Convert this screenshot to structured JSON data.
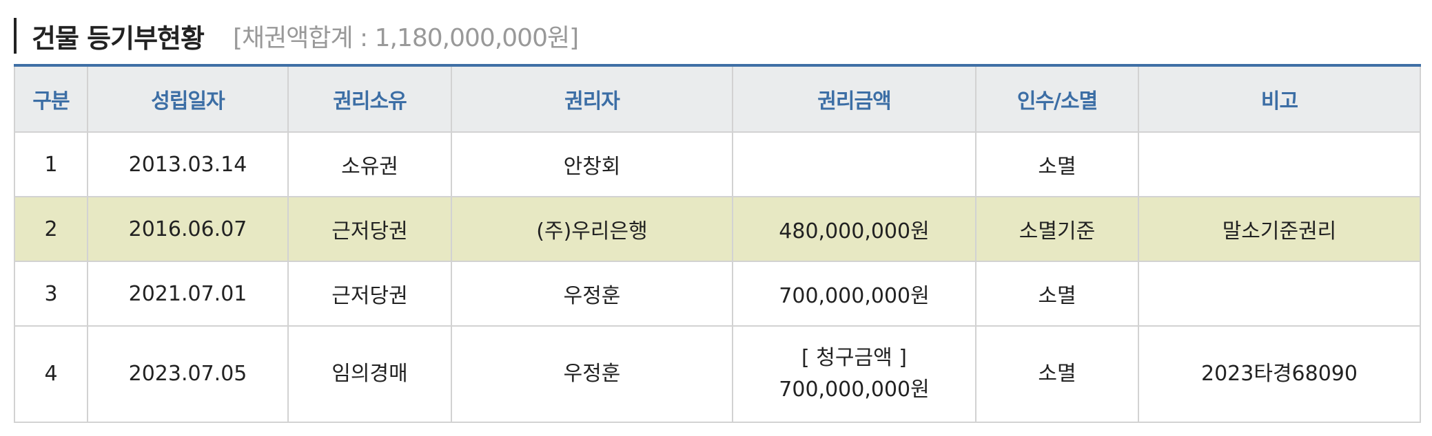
{
  "header": {
    "title": "건물 등기부현황",
    "summary": "[채권액합계 : 1,180,000,000원]"
  },
  "table": {
    "columns": [
      "구분",
      "성립일자",
      "권리소유",
      "권리자",
      "권리금액",
      "인수/소멸",
      "비고"
    ],
    "rows": [
      {
        "no": "1",
        "date": "2013.03.14",
        "right_type": "소유권",
        "holder": "안창회",
        "amount_label": "",
        "amount": "",
        "status": "소멸",
        "note": "",
        "highlight": false
      },
      {
        "no": "2",
        "date": "2016.06.07",
        "right_type": "근저당권",
        "holder": "(주)우리은행",
        "amount_label": "",
        "amount": "480,000,000원",
        "status": "소멸기준",
        "note": "말소기준권리",
        "highlight": true
      },
      {
        "no": "3",
        "date": "2021.07.01",
        "right_type": "근저당권",
        "holder": "우정훈",
        "amount_label": "",
        "amount": "700,000,000원",
        "status": "소멸",
        "note": "",
        "highlight": false
      },
      {
        "no": "4",
        "date": "2023.07.05",
        "right_type": "임의경매",
        "holder": "우정훈",
        "amount_label": "[ 청구금액 ]",
        "amount": "700,000,000원",
        "status": "소멸",
        "note": "2023타경68090",
        "highlight": false
      }
    ]
  },
  "colors": {
    "accent": "#3c6ea5",
    "header_bg": "#eaeced",
    "highlight_row_bg": "#e7e8c3",
    "alert_text": "#e02525",
    "summary_text": "#999999"
  }
}
